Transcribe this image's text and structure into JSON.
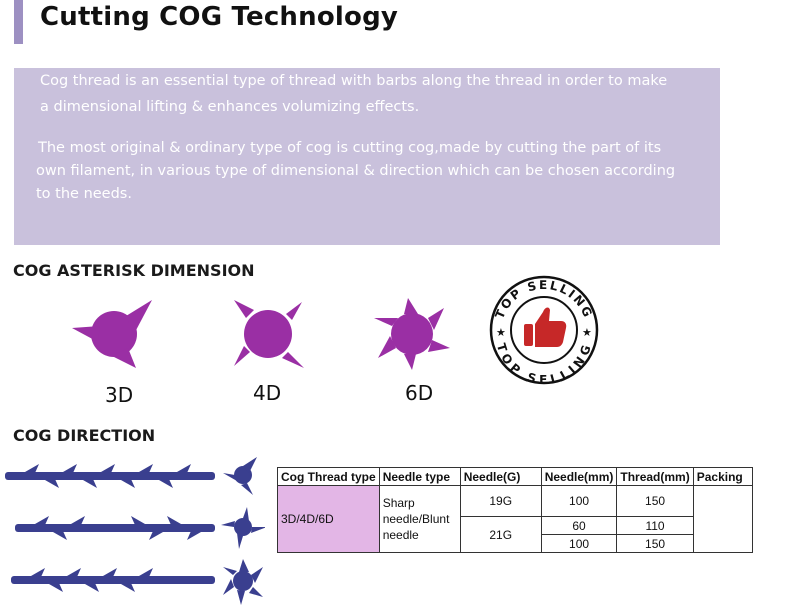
{
  "header": {
    "title": "Cutting COG Technology"
  },
  "intro": {
    "line1": "Cog thread is an essential type of thread with barbs along the thread  in order to make",
    "line2": "a dimensional lifting & enhances volumizing effects.",
    "line3": "The most original & ordinary type of cog is cutting cog,made by cutting the part of its",
    "line4": "own filament, in various type of dimensional & direction which can be chosen according",
    "line5": "to the needs."
  },
  "asterisk": {
    "heading": "COG ASTERISK DIMENSION",
    "items": [
      {
        "label": "3D",
        "icon": "3d-asterisk-icon",
        "color": "#9a2fa4"
      },
      {
        "label": "4D",
        "icon": "4d-asterisk-icon",
        "color": "#9a2fa4"
      },
      {
        "label": "6D",
        "icon": "6d-asterisk-icon",
        "color": "#9a2fa4"
      }
    ]
  },
  "badge": {
    "text_top": "TOP SELLING",
    "text_bottom": "TOP SELLING",
    "icon": "thumbs-up-icon",
    "color": "#c62828"
  },
  "direction": {
    "heading": "COG DIRECTION",
    "thread_color": "#3a3f8f"
  },
  "table": {
    "headers": [
      "Cog Thread type",
      "Needle type",
      "Needle(G)",
      "Needle(mm)",
      "Thread(mm)",
      "Packing"
    ],
    "type": "3D/4D/6D",
    "needle_type_lines": [
      "Sharp",
      "needle/Blunt",
      "needle"
    ],
    "row1": {
      "gauge": "19G",
      "needle_mm": "100",
      "thread_mm": "150"
    },
    "row2": {
      "gauge": "21G",
      "needle_mm": "60",
      "thread_mm": "110"
    },
    "row3": {
      "needle_mm": "100",
      "thread_mm": "150"
    }
  }
}
